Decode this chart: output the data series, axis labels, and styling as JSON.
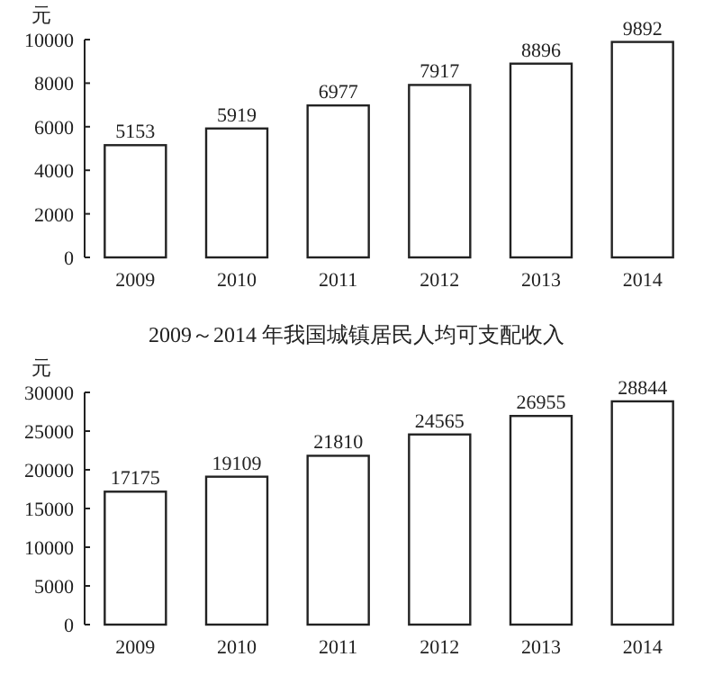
{
  "chart_data": [
    {
      "type": "bar",
      "ylabel": "元",
      "categories": [
        "2009",
        "2010",
        "2011",
        "2012",
        "2013",
        "2014"
      ],
      "values": [
        5153,
        5919,
        6977,
        7917,
        8896,
        9892
      ],
      "color": "#ffffff",
      "ylim": [
        0,
        10000
      ],
      "yticks": [
        0,
        2000,
        4000,
        6000,
        8000,
        10000
      ],
      "data_labels": true
    },
    {
      "type": "bar",
      "title": "2009～2014 年我国城镇居民人均可支配收入",
      "ylabel": "元",
      "categories": [
        "2009",
        "2010",
        "2011",
        "2012",
        "2013",
        "2014"
      ],
      "values": [
        17175,
        19109,
        21810,
        24565,
        26955,
        28844
      ],
      "color": "#ffffff",
      "ylim": [
        0,
        30000
      ],
      "yticks": [
        0,
        5000,
        10000,
        15000,
        20000,
        25000,
        30000
      ],
      "data_labels": true
    }
  ]
}
